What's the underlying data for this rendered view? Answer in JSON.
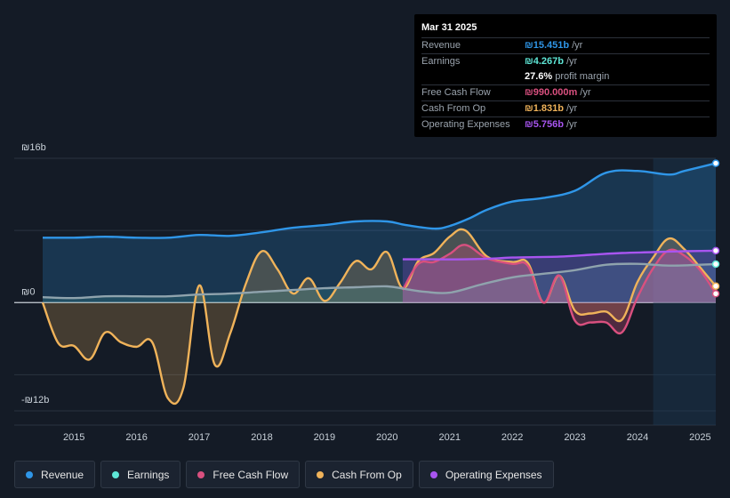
{
  "tooltip": {
    "date": "Mar 31 2025",
    "rows": [
      {
        "label": "Revenue",
        "value": "₪15.451b",
        "unit": "/yr",
        "color": "#2f96e8"
      },
      {
        "label": "Earnings",
        "value": "₪4.267b",
        "unit": "/yr",
        "color": "#5ee6d6"
      },
      {
        "label": "",
        "value": "27.6%",
        "unit": "profit margin",
        "color": "#ffffff"
      },
      {
        "label": "Free Cash Flow",
        "value": "₪990.000m",
        "unit": "/yr",
        "color": "#d9507f"
      },
      {
        "label": "Cash From Op",
        "value": "₪1.831b",
        "unit": "/yr",
        "color": "#f0b35a"
      },
      {
        "label": "Operating Expenses",
        "value": "₪5.756b",
        "unit": "/yr",
        "color": "#a855f0"
      }
    ]
  },
  "legend": [
    {
      "label": "Revenue",
      "color": "#2f96e8"
    },
    {
      "label": "Earnings",
      "color": "#5ee6d6"
    },
    {
      "label": "Free Cash Flow",
      "color": "#d9507f"
    },
    {
      "label": "Cash From Op",
      "color": "#f0b35a"
    },
    {
      "label": "Operating Expenses",
      "color": "#a855f0"
    }
  ],
  "chart_data": {
    "type": "area",
    "title": "",
    "xlabel": "",
    "ylabel": "",
    "currency": "ILS",
    "ylim": [
      -12,
      16
    ],
    "ytick_labels": [
      {
        "value": 16,
        "label": "₪16b"
      },
      {
        "value": 0,
        "label": "₪0"
      },
      {
        "value": -12,
        "label": "-₪12b"
      }
    ],
    "xlim": [
      2014.5,
      2025.25
    ],
    "xtick_labels": [
      "2015",
      "2016",
      "2017",
      "2018",
      "2019",
      "2020",
      "2021",
      "2022",
      "2023",
      "2024",
      "2025"
    ],
    "forecast_shade_start": 2024.25,
    "series": [
      {
        "name": "Revenue",
        "color": "#2f96e8",
        "fill": true,
        "points": [
          [
            2014.5,
            7.2
          ],
          [
            2015.0,
            7.2
          ],
          [
            2015.5,
            7.3
          ],
          [
            2016.0,
            7.2
          ],
          [
            2016.5,
            7.2
          ],
          [
            2017.0,
            7.5
          ],
          [
            2017.5,
            7.4
          ],
          [
            2018.0,
            7.8
          ],
          [
            2018.5,
            8.3
          ],
          [
            2019.0,
            8.6
          ],
          [
            2019.5,
            9.0
          ],
          [
            2020.0,
            9.0
          ],
          [
            2020.3,
            8.6
          ],
          [
            2020.75,
            8.2
          ],
          [
            2021.0,
            8.5
          ],
          [
            2021.3,
            9.3
          ],
          [
            2021.6,
            10.3
          ],
          [
            2022.0,
            11.2
          ],
          [
            2022.5,
            11.6
          ],
          [
            2023.0,
            12.4
          ],
          [
            2023.5,
            14.4
          ],
          [
            2024.0,
            14.6
          ],
          [
            2024.5,
            14.2
          ],
          [
            2024.75,
            14.6
          ],
          [
            2025.25,
            15.45
          ]
        ]
      },
      {
        "name": "Earnings",
        "color": "#5ee6d6",
        "fill": true,
        "points": [
          [
            2014.5,
            0.6
          ],
          [
            2015.0,
            0.5
          ],
          [
            2015.5,
            0.7
          ],
          [
            2016.0,
            0.7
          ],
          [
            2016.5,
            0.7
          ],
          [
            2017.0,
            0.9
          ],
          [
            2017.5,
            1.0
          ],
          [
            2018.0,
            1.2
          ],
          [
            2018.5,
            1.4
          ],
          [
            2019.0,
            1.6
          ],
          [
            2019.5,
            1.7
          ],
          [
            2020.0,
            1.8
          ],
          [
            2020.3,
            1.5
          ],
          [
            2020.6,
            1.2
          ],
          [
            2021.0,
            1.1
          ],
          [
            2021.5,
            2.0
          ],
          [
            2022.0,
            2.8
          ],
          [
            2022.5,
            3.2
          ],
          [
            2023.0,
            3.6
          ],
          [
            2023.5,
            4.2
          ],
          [
            2024.0,
            4.3
          ],
          [
            2024.5,
            4.1
          ],
          [
            2025.0,
            4.2
          ],
          [
            2025.25,
            4.27
          ]
        ]
      },
      {
        "name": "Free Cash Flow",
        "color": "#d9507f",
        "fill": true,
        "points": [
          [
            2020.25,
            1.4
          ],
          [
            2020.5,
            4.3
          ],
          [
            2020.75,
            4.5
          ],
          [
            2021.0,
            5.4
          ],
          [
            2021.25,
            6.4
          ],
          [
            2021.6,
            4.9
          ],
          [
            2022.0,
            4.3
          ],
          [
            2022.25,
            4.1
          ],
          [
            2022.5,
            0.0
          ],
          [
            2022.75,
            3.0
          ],
          [
            2023.0,
            -2.0
          ],
          [
            2023.25,
            -2.2
          ],
          [
            2023.5,
            -2.2
          ],
          [
            2023.75,
            -3.3
          ],
          [
            2024.0,
            0.6
          ],
          [
            2024.25,
            3.8
          ],
          [
            2024.5,
            5.8
          ],
          [
            2024.75,
            5.2
          ],
          [
            2025.0,
            3.6
          ],
          [
            2025.25,
            0.99
          ]
        ]
      },
      {
        "name": "Cash From Op",
        "color": "#f0b35a",
        "fill": true,
        "points": [
          [
            2014.5,
            0.0
          ],
          [
            2014.75,
            -4.5
          ],
          [
            2015.0,
            -4.8
          ],
          [
            2015.25,
            -6.3
          ],
          [
            2015.5,
            -3.3
          ],
          [
            2015.75,
            -4.4
          ],
          [
            2016.0,
            -4.9
          ],
          [
            2016.25,
            -4.4
          ],
          [
            2016.5,
            -10.6
          ],
          [
            2016.75,
            -9.4
          ],
          [
            2017.0,
            1.9
          ],
          [
            2017.25,
            -6.9
          ],
          [
            2017.5,
            -3.3
          ],
          [
            2017.75,
            2.2
          ],
          [
            2018.0,
            5.7
          ],
          [
            2018.25,
            3.7
          ],
          [
            2018.5,
            1.0
          ],
          [
            2018.75,
            2.7
          ],
          [
            2019.0,
            0.2
          ],
          [
            2019.25,
            2.2
          ],
          [
            2019.5,
            4.6
          ],
          [
            2019.75,
            3.7
          ],
          [
            2020.0,
            5.6
          ],
          [
            2020.25,
            1.6
          ],
          [
            2020.5,
            4.6
          ],
          [
            2020.75,
            5.5
          ],
          [
            2021.0,
            7.3
          ],
          [
            2021.25,
            8.0
          ],
          [
            2021.6,
            5.1
          ],
          [
            2022.0,
            4.5
          ],
          [
            2022.25,
            4.4
          ],
          [
            2022.5,
            0.0
          ],
          [
            2022.75,
            3.0
          ],
          [
            2023.0,
            -0.9
          ],
          [
            2023.25,
            -1.2
          ],
          [
            2023.5,
            -1.0
          ],
          [
            2023.75,
            -1.9
          ],
          [
            2024.0,
            2.3
          ],
          [
            2024.25,
            5.0
          ],
          [
            2024.5,
            7.1
          ],
          [
            2024.75,
            5.9
          ],
          [
            2025.0,
            3.9
          ],
          [
            2025.25,
            1.83
          ]
        ]
      },
      {
        "name": "Operating Expenses",
        "color": "#a855f0",
        "fill": true,
        "points": [
          [
            2020.25,
            4.8
          ],
          [
            2020.75,
            4.8
          ],
          [
            2021.25,
            4.8
          ],
          [
            2021.75,
            4.9
          ],
          [
            2022.0,
            5.0
          ],
          [
            2022.75,
            5.1
          ],
          [
            2023.25,
            5.3
          ],
          [
            2023.75,
            5.5
          ],
          [
            2024.25,
            5.6
          ],
          [
            2024.75,
            5.7
          ],
          [
            2025.25,
            5.76
          ]
        ]
      }
    ]
  }
}
